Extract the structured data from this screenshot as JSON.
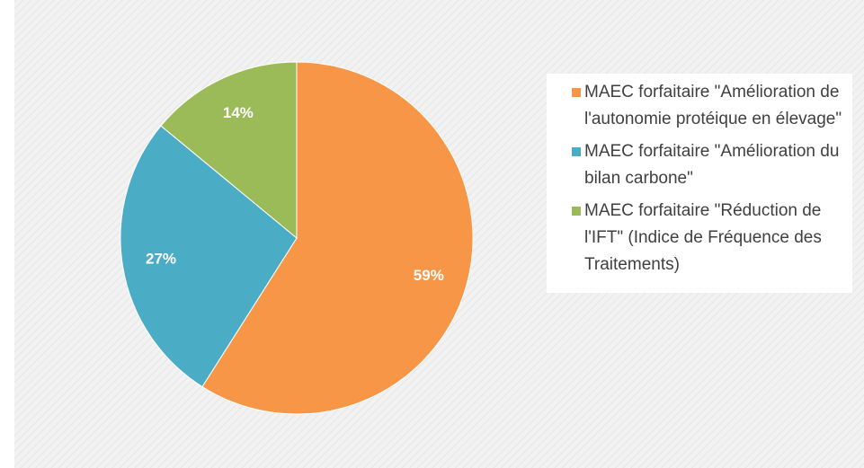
{
  "chart_data": {
    "type": "pie",
    "categories": [
      "MAEC forfaitaire \"Amélioration de l'autonomie protéique en élevage\"",
      "MAEC forfaitaire \"Amélioration du bilan carbone\"",
      "MAEC forfaitaire \"Réduction de l'IFT\" (Indice de Fréquence des Traitements)"
    ],
    "values": [
      59,
      27,
      14
    ],
    "value_labels": [
      "59%",
      "27%",
      "14%"
    ],
    "colors": [
      "#f79646",
      "#4bacc6",
      "#9bbb59"
    ],
    "legend": "right"
  }
}
